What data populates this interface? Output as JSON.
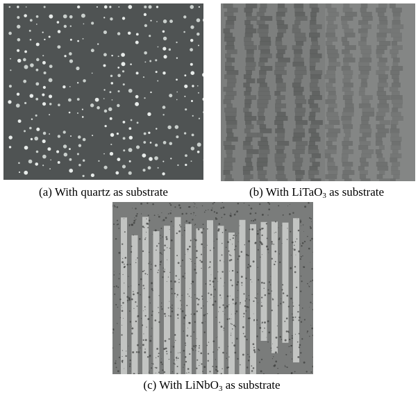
{
  "figure": {
    "panels": [
      {
        "caption": "(a) With quartz as substrate"
      },
      {
        "caption": "(b) With LiTaO",
        "subscript": "3",
        "caption_end": " as substrate"
      },
      {
        "caption": "(c) With LiNbO",
        "subscript": "3",
        "caption_end": " as substrate"
      }
    ]
  }
}
